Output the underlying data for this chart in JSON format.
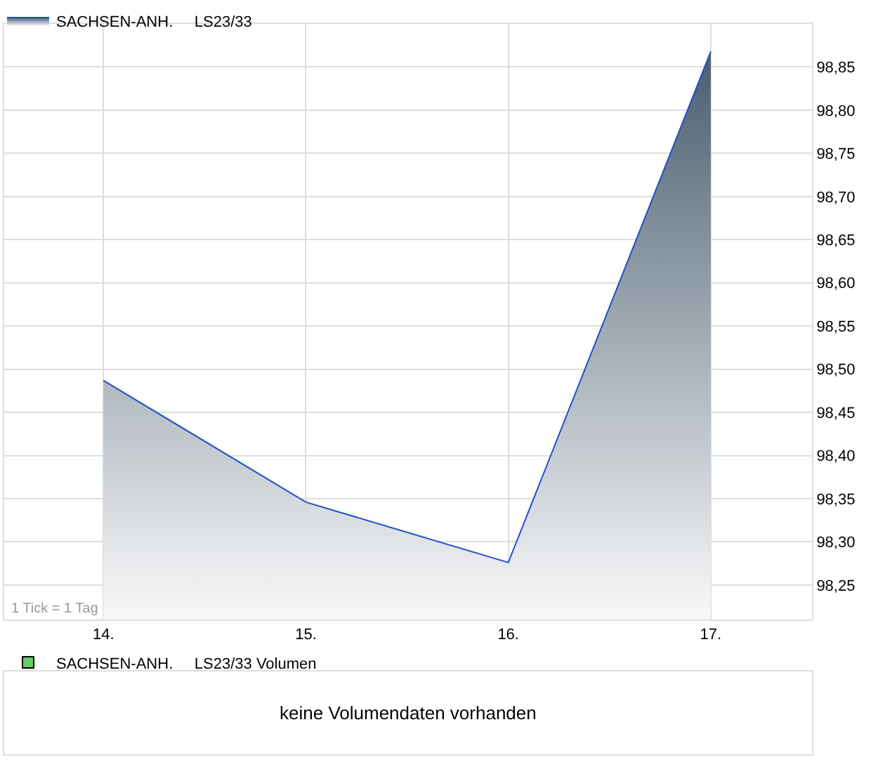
{
  "chart_data": [
    {
      "type": "area",
      "categories": [
        "14.",
        "15.",
        "16.",
        "17."
      ],
      "series": [
        {
          "name": "SACHSEN-ANH.     LS23/33",
          "color": "#1f4fcc",
          "values": [
            98.487,
            98.346,
            98.276,
            98.868
          ]
        }
      ],
      "ylim": [
        98.21,
        98.9
      ],
      "yticks": [
        {
          "value": 98.25,
          "label": "98,25"
        },
        {
          "value": 98.3,
          "label": "98,30"
        },
        {
          "value": 98.35,
          "label": "98,35"
        },
        {
          "value": 98.4,
          "label": "98,40"
        },
        {
          "value": 98.45,
          "label": "98,45"
        },
        {
          "value": 98.5,
          "label": "98,50"
        },
        {
          "value": 98.55,
          "label": "98,55"
        },
        {
          "value": 98.6,
          "label": "98,60"
        },
        {
          "value": 98.65,
          "label": "98,65"
        },
        {
          "value": 98.7,
          "label": "98,70"
        },
        {
          "value": 98.75,
          "label": "98,75"
        },
        {
          "value": 98.8,
          "label": "98,80"
        },
        {
          "value": 98.85,
          "label": "98,85"
        }
      ],
      "grid": true,
      "legend": "top left",
      "annotations": [
        "1 Tick = 1 Tag"
      ]
    },
    {
      "type": "other",
      "series": [
        {
          "name": "SACHSEN-ANH.     LS23/33 Volumen",
          "color": "#66cc66"
        }
      ],
      "legend": "top left",
      "annotations": [
        "keine Volumendaten vorhanden"
      ]
    }
  ]
}
